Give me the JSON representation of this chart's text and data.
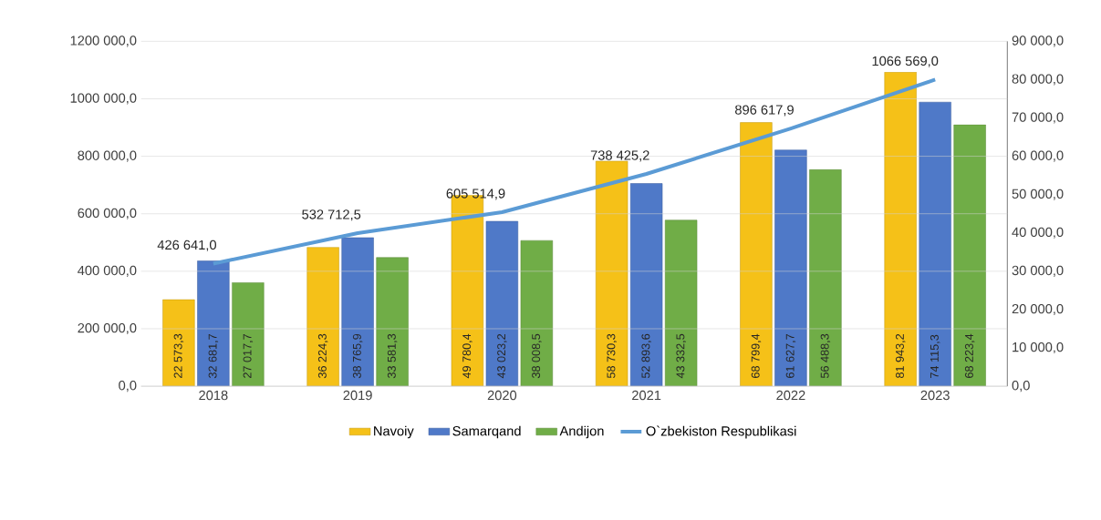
{
  "chart_data": {
    "type": "bar",
    "categories": [
      "2018",
      "2019",
      "2020",
      "2021",
      "2022",
      "2023"
    ],
    "series": [
      {
        "name": "Navoiy",
        "axis": "y2",
        "color": "#f5c118",
        "values": [
          22573.3,
          36224.3,
          49780.4,
          58730.3,
          68799.4,
          81943.2
        ],
        "value_labels": [
          "22 573,3",
          "36 224,3",
          "49 780,4",
          "58 730,3",
          "68 799,4",
          "81 943,2"
        ]
      },
      {
        "name": "Samarqand",
        "axis": "y2",
        "color": "#4f79c8",
        "values": [
          32681.7,
          38765.9,
          43023.2,
          52893.6,
          61627.7,
          74115.3
        ],
        "value_labels": [
          "32 681,7",
          "38 765,9",
          "43 023,2",
          "52 893,6",
          "61 627,7",
          "74 115,3"
        ]
      },
      {
        "name": "Andijon",
        "axis": "y2",
        "color": "#70ad47",
        "values": [
          27017.7,
          33581.3,
          38008.5,
          43332.5,
          56488.3,
          68223.4
        ],
        "value_labels": [
          "27 017,7",
          "33 581,3",
          "38 008,5",
          "43 332,5",
          "56 488,3",
          "68 223,4"
        ]
      },
      {
        "name": "O`zbekiston Respublikasi",
        "type": "line",
        "axis": "y",
        "color": "#5b9bd5",
        "values": [
          426641.0,
          532712.5,
          605514.9,
          738425.2,
          896617.9,
          1066569.0
        ],
        "value_labels": [
          "426 641,0",
          "532 712,5",
          "605 514,9",
          "738 425,2",
          "896 617,9",
          "1066 569,0"
        ]
      }
    ],
    "ylim": [
      0,
      1200000
    ],
    "yticks": [
      {
        "value": 0,
        "label": "0,0"
      },
      {
        "value": 200000,
        "label": "200 000,0"
      },
      {
        "value": 400000,
        "label": "400 000,0"
      },
      {
        "value": 600000,
        "label": "600 000,0"
      },
      {
        "value": 800000,
        "label": "800 000,0"
      },
      {
        "value": 1000000,
        "label": "1000 000,0"
      },
      {
        "value": 1200000,
        "label": "1200 000,0"
      }
    ],
    "y2lim": [
      0,
      90000
    ],
    "y2ticks": [
      {
        "value": 0,
        "label": "0,0"
      },
      {
        "value": 10000,
        "label": "10 000,0"
      },
      {
        "value": 20000,
        "label": "20 000,0"
      },
      {
        "value": 30000,
        "label": "30 000,0"
      },
      {
        "value": 40000,
        "label": "40 000,0"
      },
      {
        "value": 50000,
        "label": "50 000,0"
      },
      {
        "value": 60000,
        "label": "60 000,0"
      },
      {
        "value": 70000,
        "label": "70 000,0"
      },
      {
        "value": 80000,
        "label": "80 000,0"
      },
      {
        "value": 90000,
        "label": "90 000,0"
      }
    ],
    "grid": "y",
    "legend": "bottom",
    "marker": "none"
  }
}
